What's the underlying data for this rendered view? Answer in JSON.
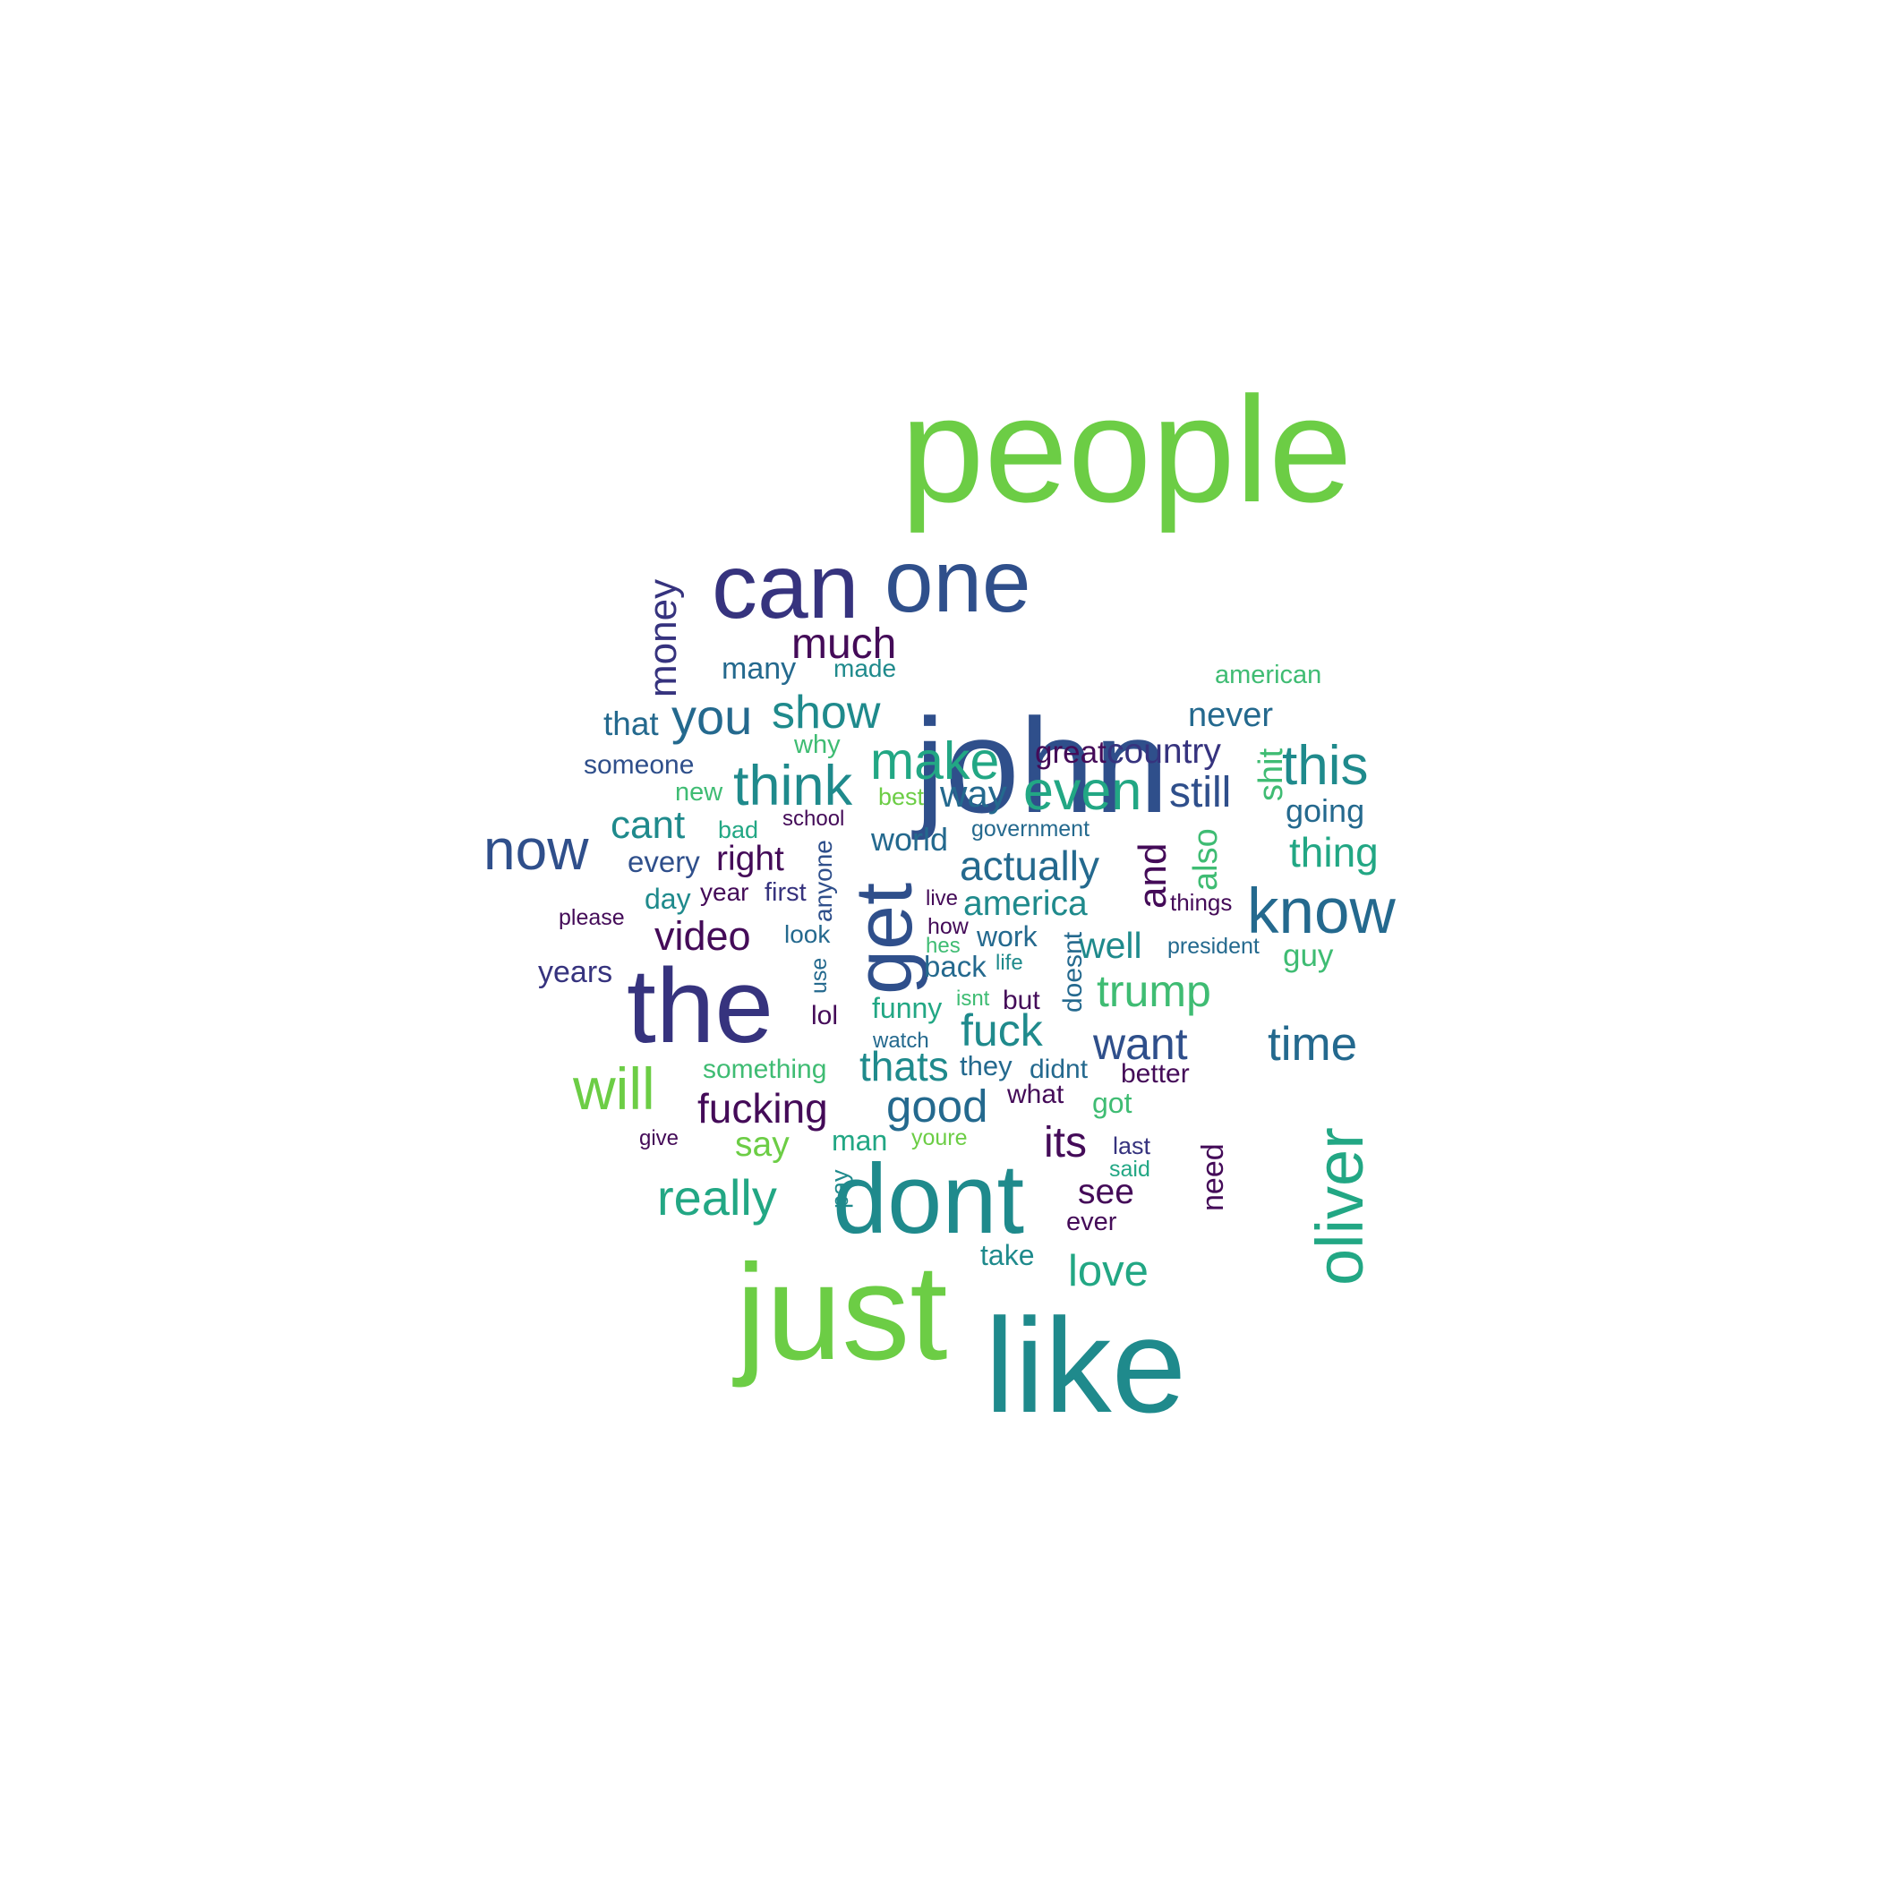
{
  "palette": {
    "bright_green": "#6ccd45",
    "green": "#3fbc73",
    "teal_green": "#22a784",
    "teal": "#1f8a8c",
    "blue_teal": "#24698e",
    "blue": "#2f4f8b",
    "indigo": "#36337e",
    "purple": "#440b58"
  },
  "words": [
    {
      "text": "people",
      "color": "#6ccd45"
    },
    {
      "text": "can",
      "color": "#36337e"
    },
    {
      "text": "one",
      "color": "#2f4f8b"
    },
    {
      "text": "john",
      "color": "#2f4f8b"
    },
    {
      "text": "money",
      "color": "#36337e"
    },
    {
      "text": "much",
      "color": "#440b58"
    },
    {
      "text": "many",
      "color": "#24698e"
    },
    {
      "text": "made",
      "color": "#1f8a8c"
    },
    {
      "text": "american",
      "color": "#3fbc73"
    },
    {
      "text": "that",
      "color": "#24698e"
    },
    {
      "text": "you",
      "color": "#24698e"
    },
    {
      "text": "show",
      "color": "#1f8a8c"
    },
    {
      "text": "never",
      "color": "#24698e"
    },
    {
      "text": "someone",
      "color": "#2f4f8b"
    },
    {
      "text": "why",
      "color": "#3fbc73"
    },
    {
      "text": "make",
      "color": "#22a784"
    },
    {
      "text": "great",
      "color": "#440b58"
    },
    {
      "text": "country",
      "color": "#36337e"
    },
    {
      "text": "shit",
      "color": "#3fbc73"
    },
    {
      "text": "this",
      "color": "#1f8a8c"
    },
    {
      "text": "new",
      "color": "#3fbc73"
    },
    {
      "text": "think",
      "color": "#1f8a8c"
    },
    {
      "text": "best",
      "color": "#6ccd45"
    },
    {
      "text": "way",
      "color": "#24698e"
    },
    {
      "text": "even",
      "color": "#22a784"
    },
    {
      "text": "still",
      "color": "#2f4f8b"
    },
    {
      "text": "going",
      "color": "#24698e"
    },
    {
      "text": "cant",
      "color": "#1f8a8c"
    },
    {
      "text": "bad",
      "color": "#22a784"
    },
    {
      "text": "school",
      "color": "#440b58"
    },
    {
      "text": "now",
      "color": "#2f4f8b"
    },
    {
      "text": "world",
      "color": "#24698e"
    },
    {
      "text": "government",
      "color": "#24698e"
    },
    {
      "text": "and",
      "color": "#440b58"
    },
    {
      "text": "also",
      "color": "#3fbc73"
    },
    {
      "text": "thing",
      "color": "#22a784"
    },
    {
      "text": "every",
      "color": "#2f4f8b"
    },
    {
      "text": "right",
      "color": "#440b58"
    },
    {
      "text": "anyone",
      "color": "#2f4f8b"
    },
    {
      "text": "get",
      "color": "#2f4f8b"
    },
    {
      "text": "actually",
      "color": "#24698e"
    },
    {
      "text": "know",
      "color": "#24698e"
    },
    {
      "text": "day",
      "color": "#1f8a8c"
    },
    {
      "text": "year",
      "color": "#440b58"
    },
    {
      "text": "first",
      "color": "#36337e"
    },
    {
      "text": "live",
      "color": "#440b58"
    },
    {
      "text": "america",
      "color": "#1f8a8c"
    },
    {
      "text": "things",
      "color": "#440b58"
    },
    {
      "text": "please",
      "color": "#440b58"
    },
    {
      "text": "video",
      "color": "#440b58"
    },
    {
      "text": "look",
      "color": "#24698e"
    },
    {
      "text": "how",
      "color": "#440b58"
    },
    {
      "text": "work",
      "color": "#24698e"
    },
    {
      "text": "well",
      "color": "#1f8a8c"
    },
    {
      "text": "president",
      "color": "#24698e"
    },
    {
      "text": "hes",
      "color": "#3fbc73"
    },
    {
      "text": "doesnt",
      "color": "#24698e"
    },
    {
      "text": "guy",
      "color": "#3fbc73"
    },
    {
      "text": "years",
      "color": "#36337e"
    },
    {
      "text": "the",
      "color": "#36337e"
    },
    {
      "text": "use",
      "color": "#24698e"
    },
    {
      "text": "back",
      "color": "#24698e"
    },
    {
      "text": "life",
      "color": "#1f8a8c"
    },
    {
      "text": "trump",
      "color": "#3fbc73"
    },
    {
      "text": "isnt",
      "color": "#3fbc73"
    },
    {
      "text": "but",
      "color": "#440b58"
    },
    {
      "text": "lol",
      "color": "#440b58"
    },
    {
      "text": "funny",
      "color": "#22a784"
    },
    {
      "text": "fuck",
      "color": "#1f8a8c"
    },
    {
      "text": "time",
      "color": "#24698e"
    },
    {
      "text": "watch",
      "color": "#24698e"
    },
    {
      "text": "want",
      "color": "#2f4f8b"
    },
    {
      "text": "will",
      "color": "#6ccd45"
    },
    {
      "text": "something",
      "color": "#3fbc73"
    },
    {
      "text": "thats",
      "color": "#1f8a8c"
    },
    {
      "text": "they",
      "color": "#24698e"
    },
    {
      "text": "didnt",
      "color": "#24698e"
    },
    {
      "text": "better",
      "color": "#440b58"
    },
    {
      "text": "oliver",
      "color": "#22a784"
    },
    {
      "text": "fucking",
      "color": "#440b58"
    },
    {
      "text": "good",
      "color": "#24698e"
    },
    {
      "text": "what",
      "color": "#440b58"
    },
    {
      "text": "got",
      "color": "#3fbc73"
    },
    {
      "text": "give",
      "color": "#440b58"
    },
    {
      "text": "say",
      "color": "#6ccd45"
    },
    {
      "text": "man",
      "color": "#22a784"
    },
    {
      "text": "youre",
      "color": "#6ccd45"
    },
    {
      "text": "its",
      "color": "#440b58"
    },
    {
      "text": "last",
      "color": "#36337e"
    },
    {
      "text": "need",
      "color": "#440b58"
    },
    {
      "text": "said",
      "color": "#22a784"
    },
    {
      "text": "pay",
      "color": "#1f8a8c"
    },
    {
      "text": "really",
      "color": "#22a784"
    },
    {
      "text": "dont",
      "color": "#1f8a8c"
    },
    {
      "text": "see",
      "color": "#440b58"
    },
    {
      "text": "ever",
      "color": "#440b58"
    },
    {
      "text": "take",
      "color": "#1f8a8c"
    },
    {
      "text": "love",
      "color": "#22a784"
    },
    {
      "text": "just",
      "color": "#6ccd45"
    },
    {
      "text": "like",
      "color": "#1f8a8c"
    }
  ]
}
